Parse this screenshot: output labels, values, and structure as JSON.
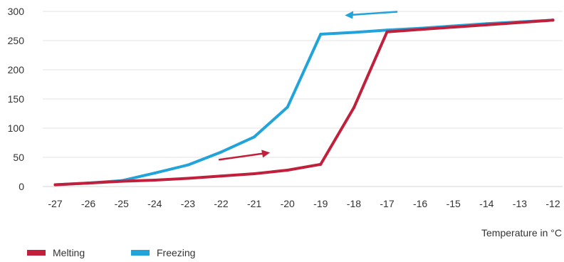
{
  "chart_data": {
    "type": "line",
    "title": "",
    "xlabel": "Temperature in °C",
    "ylabel": "",
    "x": [
      -27,
      -26,
      -25,
      -24,
      -23,
      -22,
      -21,
      -20,
      -19,
      -18,
      -17,
      -16,
      -15,
      -14,
      -13,
      -12
    ],
    "x_tick_labels": [
      "-27",
      "-26",
      "-25",
      "-24",
      "-23",
      "-22",
      "-21",
      "-20",
      "-19",
      "-18",
      "-17",
      "-16",
      "-15",
      "-14",
      "-13",
      "-12"
    ],
    "ylim": [
      0,
      300
    ],
    "y_ticks": [
      0,
      50,
      100,
      150,
      200,
      250,
      300
    ],
    "y_tick_labels": [
      "0",
      "50",
      "100",
      "150",
      "200",
      "250",
      "300"
    ],
    "grid": "horizontal",
    "legend_position": "bottom-left",
    "series": [
      {
        "name": "Melting",
        "color": "#c0203b",
        "values": [
          3,
          6,
          9,
          11,
          14,
          18,
          22,
          28,
          38,
          135,
          265,
          269,
          273,
          277,
          281,
          285
        ]
      },
      {
        "name": "Freezing",
        "color": "#22a3d9",
        "values": [
          3,
          6,
          10,
          23,
          37,
          59,
          85,
          136,
          261,
          264,
          268,
          271,
          275,
          279,
          282,
          285
        ]
      }
    ],
    "annotations": [
      {
        "type": "arrow",
        "series": "Freezing",
        "direction": "left",
        "at_x": -17.5,
        "at_y": 297
      },
      {
        "type": "arrow",
        "series": "Melting",
        "direction": "right",
        "at_x": -21.3,
        "at_y": 52
      }
    ]
  }
}
